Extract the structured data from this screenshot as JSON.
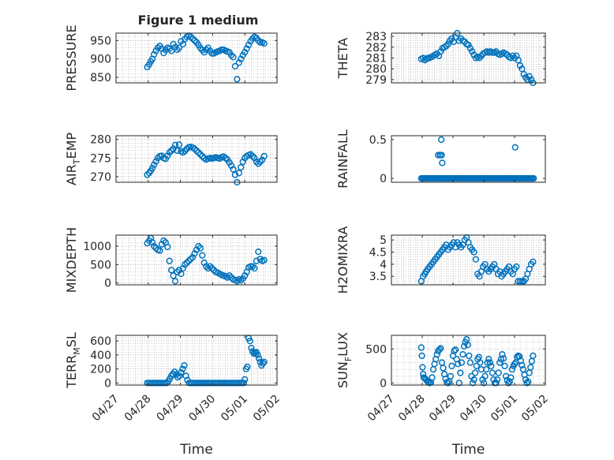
{
  "figure": {
    "title": "Figure 1 medium"
  },
  "colors": {
    "marker": "#0072BD",
    "grid": "#b0b0b0",
    "axis": "#262626",
    "background": "#ffffff"
  },
  "chart_data": [
    {
      "id": "pressure",
      "type": "scatter",
      "title": "Figure 1 medium",
      "ylabel_main": "PRESSURE",
      "ylabel_sub": "",
      "ylabel_tail": "",
      "ylim": [
        835,
        970
      ],
      "yticks": [
        850,
        900,
        950
      ],
      "ytick_labels": [
        "850",
        "900",
        "950"
      ],
      "xlim": [
        0,
        5
      ],
      "xlabel": "",
      "grid": true,
      "x": [
        0.97,
        1.03,
        1.08,
        1.13,
        1.18,
        1.24,
        1.3,
        1.36,
        1.42,
        1.48,
        1.54,
        1.6,
        1.66,
        1.72,
        1.78,
        1.84,
        1.9,
        1.96,
        2.02,
        2.08,
        2.14,
        2.2,
        2.26,
        2.32,
        2.38,
        2.44,
        2.5,
        2.56,
        2.62,
        2.68,
        2.74,
        2.8,
        2.86,
        2.92,
        2.98,
        3.04,
        3.1,
        3.16,
        3.22,
        3.28,
        3.34,
        3.4,
        3.46,
        3.52,
        3.58,
        3.64,
        3.7,
        3.76,
        3.82,
        3.88,
        3.94,
        4.0,
        4.06,
        4.12,
        4.18,
        4.24,
        4.3,
        4.36,
        4.42,
        4.48,
        4.54,
        4.6
      ],
      "values": [
        878,
        885,
        893,
        900,
        912,
        922,
        930,
        935,
        928,
        916,
        924,
        930,
        928,
        922,
        940,
        932,
        925,
        930,
        948,
        940,
        954,
        960,
        963,
        960,
        955,
        950,
        945,
        938,
        930,
        924,
        918,
        925,
        930,
        922,
        915,
        915,
        918,
        920,
        922,
        925,
        925,
        922,
        920,
        918,
        910,
        905,
        880,
        845,
        890,
        900,
        910,
        918,
        928,
        938,
        948,
        955,
        960,
        957,
        950,
        945,
        945,
        942
      ]
    },
    {
      "id": "theta",
      "type": "scatter",
      "ylabel_main": "THETA",
      "ylabel_sub": "",
      "ylabel_tail": "",
      "ylim": [
        278.7,
        283.3
      ],
      "yticks": [
        279,
        280,
        281,
        282,
        283
      ],
      "ytick_labels": [
        "279",
        "280",
        "281",
        "282",
        "283"
      ],
      "xlim": [
        0,
        5
      ],
      "xlabel": "",
      "grid": true,
      "x": [
        0.97,
        1.03,
        1.08,
        1.13,
        1.18,
        1.24,
        1.3,
        1.36,
        1.42,
        1.48,
        1.54,
        1.6,
        1.66,
        1.72,
        1.78,
        1.84,
        1.9,
        1.96,
        2.02,
        2.08,
        2.14,
        2.2,
        2.26,
        2.32,
        2.38,
        2.44,
        2.5,
        2.56,
        2.62,
        2.68,
        2.74,
        2.8,
        2.86,
        2.92,
        2.98,
        3.04,
        3.1,
        3.16,
        3.22,
        3.28,
        3.34,
        3.4,
        3.46,
        3.52,
        3.58,
        3.64,
        3.7,
        3.76,
        3.82,
        3.88,
        3.94,
        4.0,
        4.06,
        4.12,
        4.18,
        4.24,
        4.3,
        4.36,
        4.42,
        4.48,
        4.54,
        4.6
      ],
      "values": [
        280.9,
        281.0,
        280.8,
        280.9,
        281.0,
        281.0,
        281.1,
        281.2,
        281.3,
        281.4,
        281.2,
        281.6,
        281.9,
        282.0,
        282.1,
        282.3,
        282.6,
        282.8,
        282.5,
        282.9,
        283.3,
        282.6,
        282.8,
        282.6,
        282.5,
        282.3,
        282.2,
        281.9,
        281.6,
        281.3,
        281.0,
        281.1,
        281.0,
        281.2,
        281.4,
        281.5,
        281.6,
        281.5,
        281.6,
        281.5,
        281.5,
        281.6,
        281.4,
        281.3,
        281.4,
        281.5,
        281.4,
        281.3,
        281.1,
        281.0,
        281.2,
        281.0,
        281.2,
        280.8,
        280.3,
        280.0,
        279.5,
        279.2,
        279.0,
        279.3,
        279.0,
        278.7
      ]
    },
    {
      "id": "air_temp",
      "type": "scatter",
      "ylabel_main": "AIR",
      "ylabel_sub": "T",
      "ylabel_tail": "EMP",
      "ylim": [
        268.5,
        281
      ],
      "yticks": [
        270,
        275,
        280
      ],
      "ytick_labels": [
        "270",
        "275",
        "280"
      ],
      "xlim": [
        0,
        5
      ],
      "xlabel": "",
      "grid": true,
      "x": [
        0.97,
        1.03,
        1.08,
        1.13,
        1.18,
        1.24,
        1.3,
        1.36,
        1.42,
        1.48,
        1.54,
        1.6,
        1.66,
        1.72,
        1.78,
        1.84,
        1.9,
        1.96,
        2.02,
        2.08,
        2.14,
        2.2,
        2.26,
        2.32,
        2.38,
        2.44,
        2.5,
        2.56,
        2.62,
        2.68,
        2.74,
        2.8,
        2.86,
        2.92,
        2.98,
        3.04,
        3.1,
        3.16,
        3.22,
        3.28,
        3.34,
        3.4,
        3.46,
        3.52,
        3.58,
        3.64,
        3.7,
        3.76,
        3.82,
        3.88,
        3.94,
        4.0,
        4.06,
        4.12,
        4.18,
        4.24,
        4.3,
        4.36,
        4.42,
        4.48,
        4.54,
        4.6
      ],
      "values": [
        270.5,
        271.0,
        271.6,
        272.3,
        273.2,
        274.1,
        275.0,
        275.5,
        275.6,
        275.0,
        274.8,
        275.6,
        276.5,
        277.0,
        277.5,
        278.5,
        277.0,
        278.6,
        276.8,
        276.5,
        276.9,
        277.5,
        277.9,
        278.0,
        277.8,
        277.5,
        277.0,
        276.5,
        276.0,
        275.5,
        275.0,
        274.6,
        274.8,
        275.0,
        274.9,
        275.0,
        275.2,
        275.0,
        274.9,
        275.2,
        275.4,
        275.0,
        274.6,
        273.8,
        273.0,
        272.0,
        270.5,
        268.5,
        271.0,
        272.5,
        274.0,
        275.0,
        275.5,
        275.8,
        276.0,
        275.5,
        275.0,
        274.0,
        273.5,
        274.0,
        274.5,
        275.5
      ]
    },
    {
      "id": "rainfall",
      "type": "scatter",
      "ylabel_main": "RAINFALL",
      "ylabel_sub": "",
      "ylabel_tail": "",
      "ylim": [
        -0.05,
        0.55
      ],
      "yticks": [
        0,
        0.5
      ],
      "ytick_labels": [
        "0",
        "0.5"
      ],
      "xlim": [
        0,
        5
      ],
      "xlabel": "",
      "grid": false,
      "x": [
        0.97,
        1.01,
        1.05,
        1.09,
        1.13,
        1.17,
        1.21,
        1.25,
        1.29,
        1.33,
        1.37,
        1.41,
        1.45,
        1.49,
        1.53,
        1.57,
        1.6,
        1.64,
        1.66,
        1.7,
        1.74,
        1.78,
        1.82,
        1.86,
        1.9,
        1.94,
        1.98,
        2.02,
        2.06,
        2.1,
        2.14,
        2.18,
        2.22,
        2.26,
        2.3,
        2.34,
        2.38,
        2.42,
        2.46,
        2.5,
        2.54,
        2.58,
        2.62,
        2.66,
        2.7,
        2.74,
        2.78,
        2.82,
        2.86,
        2.9,
        2.94,
        2.98,
        3.02,
        3.06,
        3.1,
        3.14,
        3.18,
        3.22,
        3.26,
        3.3,
        3.34,
        3.38,
        3.42,
        3.46,
        3.5,
        3.54,
        3.58,
        3.62,
        3.66,
        3.7,
        3.74,
        3.78,
        3.82,
        3.86,
        3.9,
        3.94,
        3.98,
        4.02,
        4.06,
        4.1,
        4.14,
        4.18,
        4.22,
        4.26,
        4.3,
        4.34,
        4.38,
        4.42,
        4.46,
        4.5,
        4.54,
        4.58,
        4.62,
        1.52,
        1.58,
        1.62,
        1.63,
        1.65,
        4.02
      ],
      "values": [
        0,
        0,
        0,
        0,
        0,
        0,
        0,
        0,
        0,
        0,
        0,
        0,
        0,
        0,
        0,
        0,
        0,
        0,
        0,
        0,
        0,
        0,
        0,
        0,
        0,
        0,
        0,
        0,
        0,
        0,
        0,
        0,
        0,
        0,
        0,
        0,
        0,
        0,
        0,
        0,
        0,
        0,
        0,
        0,
        0,
        0,
        0,
        0,
        0,
        0,
        0,
        0,
        0,
        0,
        0,
        0,
        0,
        0,
        0,
        0,
        0,
        0,
        0,
        0,
        0,
        0,
        0,
        0,
        0,
        0,
        0,
        0,
        0,
        0,
        0,
        0,
        0,
        0,
        0,
        0,
        0,
        0,
        0,
        0,
        0,
        0,
        0,
        0,
        0,
        0,
        0,
        0,
        0,
        0.3,
        0.3,
        0.5,
        0.3,
        0.2,
        0.4
      ]
    },
    {
      "id": "mixdepth",
      "type": "scatter",
      "ylabel_main": "MIXDEPTH",
      "ylabel_sub": "",
      "ylabel_tail": "",
      "ylim": [
        -50,
        1300
      ],
      "yticks": [
        0,
        500,
        1000
      ],
      "ytick_labels": [
        "0",
        "500",
        "1000"
      ],
      "xlim": [
        0,
        5
      ],
      "xlabel": "",
      "grid": true,
      "x": [
        0.97,
        1.03,
        1.08,
        1.13,
        1.18,
        1.24,
        1.3,
        1.36,
        1.42,
        1.48,
        1.54,
        1.6,
        1.66,
        1.72,
        1.78,
        1.84,
        1.9,
        1.96,
        2.02,
        2.08,
        2.14,
        2.2,
        2.26,
        2.32,
        2.38,
        2.44,
        2.5,
        2.56,
        2.62,
        2.68,
        2.74,
        2.8,
        2.86,
        2.92,
        2.98,
        3.04,
        3.1,
        3.16,
        3.22,
        3.28,
        3.34,
        3.4,
        3.46,
        3.52,
        3.58,
        3.64,
        3.7,
        3.76,
        3.82,
        3.88,
        3.94,
        4.0,
        4.06,
        4.12,
        4.18,
        4.24,
        4.3,
        4.36,
        4.42,
        4.48,
        4.54,
        4.6
      ],
      "values": [
        1080,
        1150,
        1220,
        1100,
        1000,
        950,
        900,
        880,
        1050,
        1150,
        1100,
        980,
        600,
        350,
        200,
        50,
        300,
        350,
        250,
        400,
        500,
        550,
        600,
        650,
        700,
        800,
        900,
        1000,
        950,
        750,
        550,
        450,
        400,
        450,
        400,
        350,
        300,
        280,
        250,
        220,
        200,
        180,
        150,
        200,
        150,
        100,
        80,
        50,
        100,
        70,
        120,
        200,
        300,
        420,
        450,
        450,
        400,
        600,
        850,
        650,
        600,
        620
      ]
    },
    {
      "id": "h2omixra",
      "type": "scatter",
      "ylabel_main": "H2OMIXRA",
      "ylabel_sub": "",
      "ylabel_tail": "",
      "ylim": [
        3.15,
        5.2
      ],
      "yticks": [
        3.5,
        4,
        4.5,
        5
      ],
      "ytick_labels": [
        "3.5",
        "4",
        "4.5",
        "5"
      ],
      "xlim": [
        0,
        5
      ],
      "xlabel": "",
      "grid": true,
      "x": [
        0.97,
        1.03,
        1.08,
        1.13,
        1.18,
        1.24,
        1.3,
        1.36,
        1.42,
        1.48,
        1.54,
        1.6,
        1.66,
        1.72,
        1.78,
        1.84,
        1.9,
        1.96,
        2.02,
        2.08,
        2.14,
        2.2,
        2.26,
        2.32,
        2.38,
        2.44,
        2.5,
        2.56,
        2.62,
        2.68,
        2.74,
        2.8,
        2.86,
        2.92,
        2.98,
        3.04,
        3.1,
        3.16,
        3.22,
        3.28,
        3.34,
        3.4,
        3.46,
        3.52,
        3.58,
        3.64,
        3.7,
        3.76,
        3.82,
        3.88,
        3.94,
        4.0,
        4.06,
        4.12,
        4.18,
        4.24,
        4.3,
        4.36,
        4.42,
        4.48,
        4.54,
        4.6
      ],
      "values": [
        3.3,
        3.5,
        3.6,
        3.7,
        3.8,
        3.9,
        4.0,
        4.1,
        4.2,
        4.3,
        4.4,
        4.5,
        4.6,
        4.7,
        4.8,
        4.6,
        4.7,
        4.8,
        4.9,
        4.7,
        4.9,
        4.8,
        4.7,
        4.8,
        5.0,
        5.1,
        4.9,
        4.7,
        4.6,
        4.5,
        4.2,
        3.6,
        3.5,
        3.7,
        3.9,
        4.0,
        3.8,
        3.7,
        3.8,
        3.9,
        4.0,
        3.8,
        3.6,
        3.7,
        3.5,
        3.6,
        3.7,
        3.8,
        3.9,
        3.7,
        3.6,
        3.8,
        3.9,
        3.3,
        3.3,
        3.3,
        3.3,
        3.4,
        3.6,
        3.8,
        4.0,
        4.1
      ]
    },
    {
      "id": "terrm_sl",
      "type": "scatter",
      "ylabel_main": "TERR",
      "ylabel_sub": "M",
      "ylabel_tail": "SL",
      "ylim": [
        -30,
        680
      ],
      "yticks": [
        0,
        200,
        400,
        600
      ],
      "ytick_labels": [
        "0",
        "200",
        "400",
        "600"
      ],
      "xlim": [
        0,
        5
      ],
      "xlabel": "Time",
      "grid": true,
      "xticks": [
        0,
        1,
        2,
        3,
        4,
        5
      ],
      "xtick_labels": [
        "04/27",
        "04/28",
        "04/29",
        "04/30",
        "05/01",
        "05/02"
      ],
      "x": [
        0.97,
        1.02,
        1.07,
        1.12,
        1.17,
        1.22,
        1.27,
        1.32,
        1.37,
        1.42,
        1.47,
        1.52,
        1.57,
        1.62,
        1.67,
        1.72,
        1.77,
        1.82,
        1.87,
        1.92,
        1.97,
        2.02,
        2.07,
        2.12,
        2.17,
        2.22,
        2.27,
        2.32,
        2.37,
        2.42,
        2.47,
        2.52,
        2.57,
        2.62,
        2.67,
        2.72,
        2.77,
        2.82,
        2.87,
        2.92,
        2.97,
        3.02,
        3.07,
        3.12,
        3.17,
        3.22,
        3.27,
        3.32,
        3.37,
        3.42,
        3.47,
        3.52,
        3.57,
        3.62,
        3.67,
        3.72,
        3.77,
        3.82,
        3.87,
        3.92,
        3.97,
        4.0,
        4.04,
        4.08,
        4.12,
        4.16,
        4.2,
        4.24,
        4.28,
        4.32,
        4.36,
        4.4,
        4.44,
        4.48,
        4.52,
        4.56,
        4.6
      ],
      "values": [
        0,
        0,
        0,
        0,
        0,
        0,
        0,
        0,
        0,
        0,
        0,
        0,
        0,
        20,
        60,
        100,
        130,
        160,
        120,
        80,
        100,
        150,
        200,
        250,
        100,
        40,
        0,
        0,
        0,
        0,
        0,
        0,
        0,
        0,
        0,
        0,
        0,
        0,
        0,
        0,
        0,
        0,
        0,
        0,
        0,
        0,
        0,
        0,
        0,
        0,
        0,
        0,
        0,
        0,
        0,
        0,
        0,
        0,
        0,
        0,
        0,
        50,
        200,
        230,
        640,
        600,
        500,
        450,
        420,
        430,
        440,
        400,
        350,
        300,
        250,
        280,
        300
      ]
    },
    {
      "id": "sunflux",
      "type": "scatter",
      "ylabel_main": "SUN",
      "ylabel_sub": "F",
      "ylabel_tail": "LUX",
      "ylim": [
        -30,
        700
      ],
      "yticks": [
        0,
        500
      ],
      "ytick_labels": [
        "0",
        "500"
      ],
      "xlim": [
        0,
        5
      ],
      "xlabel": "Time",
      "grid": true,
      "xticks": [
        0,
        1,
        2,
        3,
        4,
        5
      ],
      "xtick_labels": [
        "04/27",
        "04/28",
        "04/29",
        "04/30",
        "05/01",
        "05/02"
      ],
      "x": [
        0.97,
        0.99,
        1.01,
        1.03,
        1.05,
        1.08,
        1.12,
        1.16,
        1.2,
        1.24,
        1.28,
        1.32,
        1.36,
        1.4,
        1.44,
        1.48,
        1.52,
        1.56,
        1.6,
        1.64,
        1.68,
        1.72,
        1.76,
        1.8,
        1.84,
        1.88,
        1.92,
        1.96,
        2.0,
        2.04,
        2.08,
        2.12,
        2.16,
        2.2,
        2.24,
        2.28,
        2.32,
        2.36,
        2.4,
        2.44,
        2.48,
        2.52,
        2.56,
        2.6,
        2.64,
        2.68,
        2.72,
        2.76,
        2.8,
        2.84,
        2.88,
        2.92,
        2.96,
        3.0,
        3.04,
        3.08,
        3.12,
        3.16,
        3.2,
        3.24,
        3.28,
        3.32,
        3.36,
        3.4,
        3.44,
        3.48,
        3.52,
        3.56,
        3.6,
        3.64,
        3.68,
        3.72,
        3.76,
        3.8,
        3.84,
        3.88,
        3.92,
        3.96,
        4.0,
        4.04,
        4.08,
        4.12,
        4.16,
        4.2,
        4.24,
        4.28,
        4.32,
        4.36,
        4.4,
        4.44,
        4.48,
        4.52,
        4.56,
        4.6
      ],
      "values": [
        520,
        400,
        230,
        130,
        80,
        70,
        50,
        30,
        10,
        0,
        10,
        80,
        200,
        280,
        350,
        420,
        470,
        490,
        510,
        300,
        220,
        130,
        60,
        10,
        0,
        20,
        100,
        250,
        400,
        470,
        490,
        350,
        280,
        0,
        150,
        300,
        420,
        540,
        600,
        640,
        560,
        400,
        300,
        100,
        0,
        50,
        150,
        250,
        350,
        380,
        300,
        200,
        50,
        0,
        100,
        200,
        300,
        350,
        300,
        250,
        150,
        50,
        0,
        0,
        50,
        150,
        300,
        350,
        420,
        360,
        250,
        100,
        40,
        0,
        20,
        80,
        200,
        250,
        280,
        300,
        380,
        400,
        390,
        330,
        260,
        200,
        120,
        50,
        0,
        20,
        150,
        230,
        320,
        400
      ]
    }
  ]
}
